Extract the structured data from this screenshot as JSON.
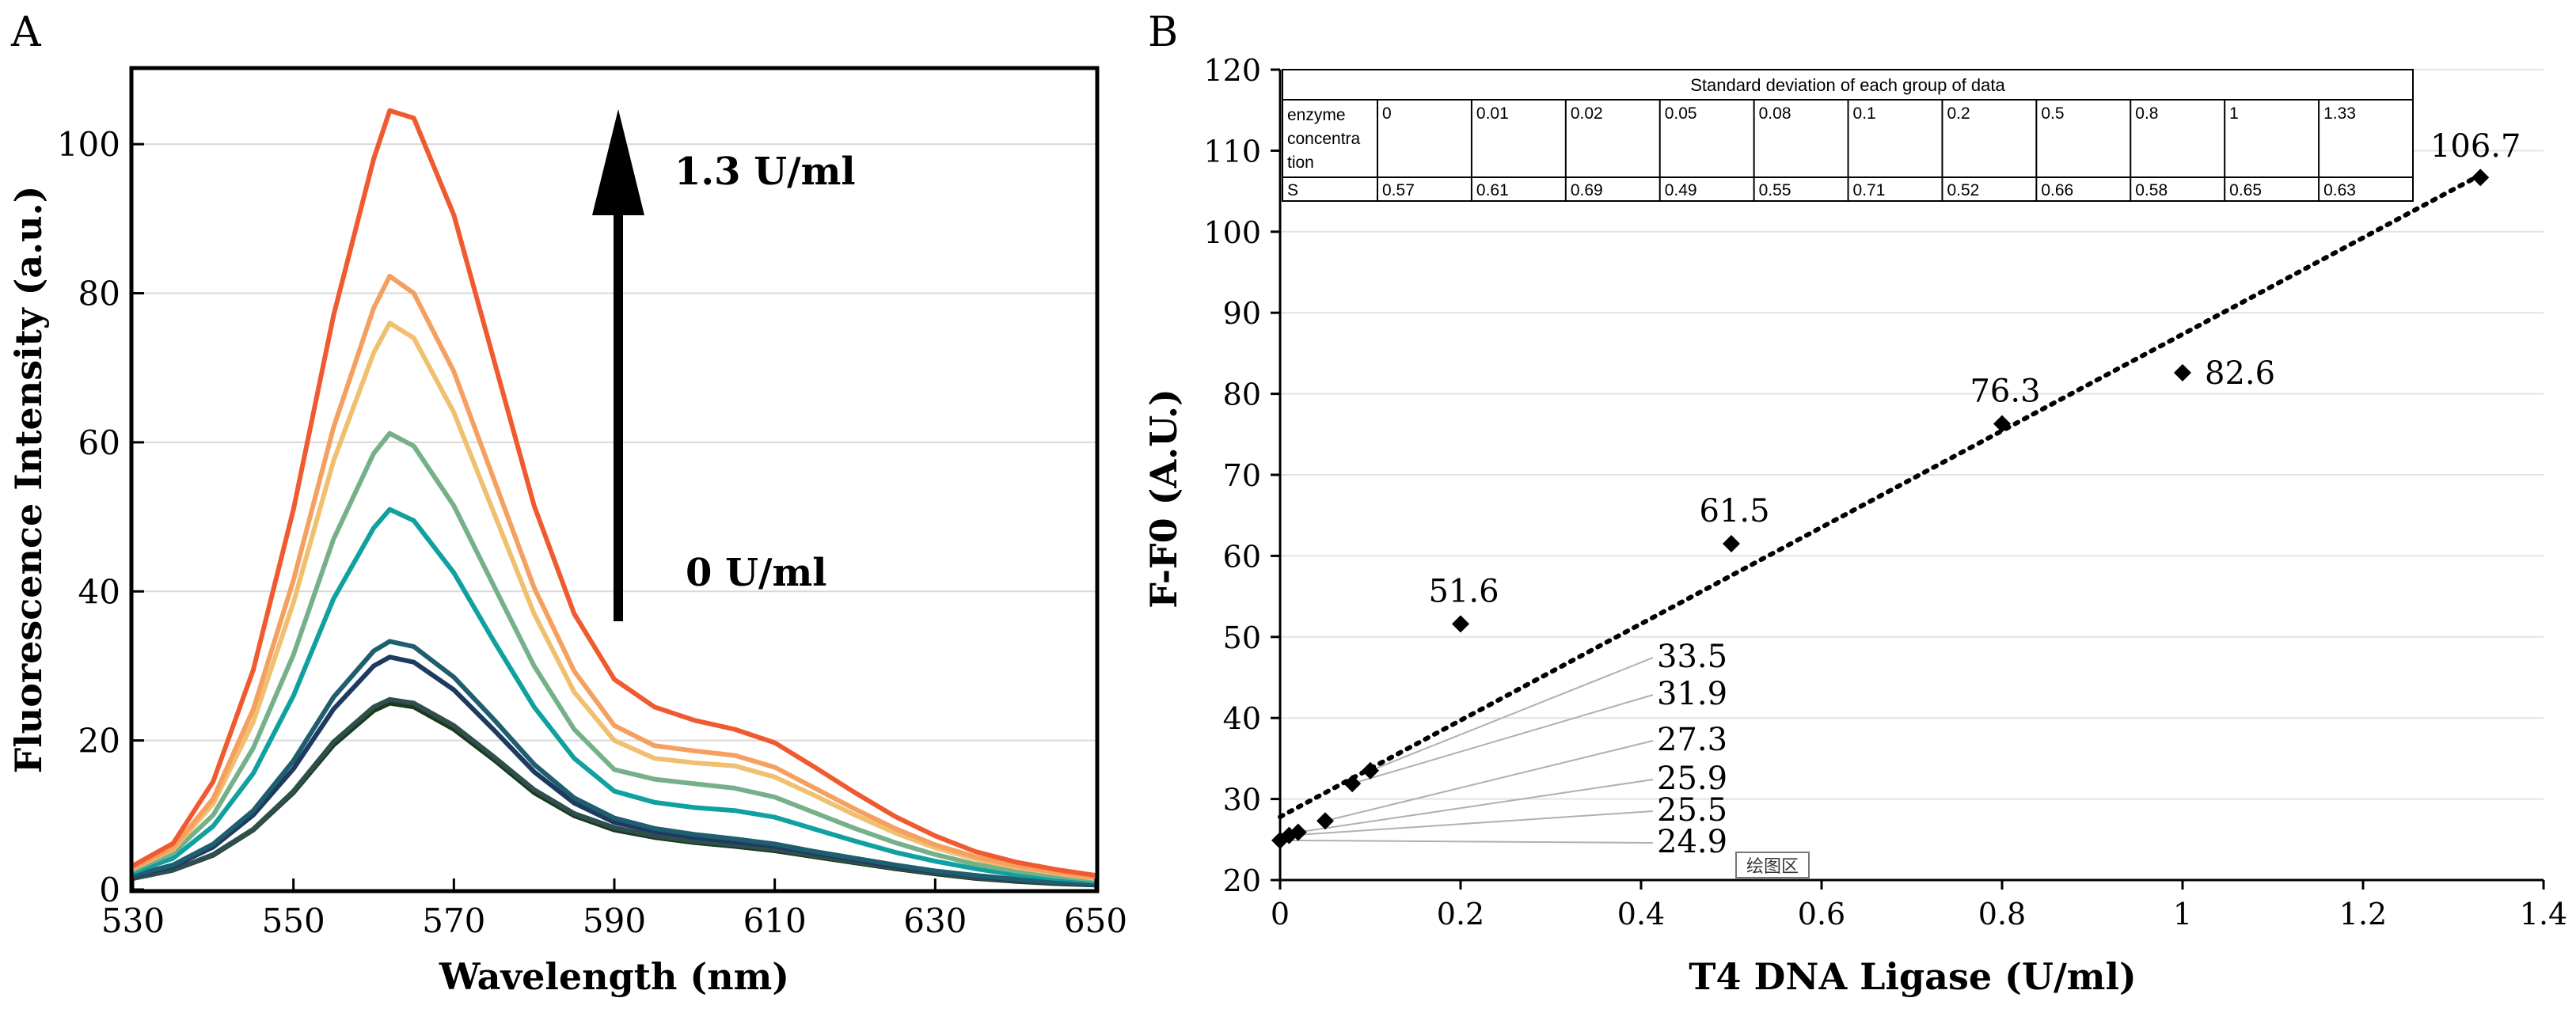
{
  "panel_a_label": "A",
  "panel_b_label": "B",
  "chart_data": [
    {
      "type": "line",
      "panel": "A",
      "xlabel": "Wavelength (nm)",
      "ylabel": "Fluorescence Intensity (a.u.)",
      "xlim": [
        530,
        650
      ],
      "ylim": [
        0,
        110
      ],
      "x_ticks": [
        530,
        550,
        570,
        590,
        610,
        630,
        650
      ],
      "y_ticks": [
        0,
        20,
        40,
        60,
        80,
        100
      ],
      "grid": "horizontal",
      "annotations": {
        "high": "1.3 U/ml",
        "low": "0 U/ml"
      },
      "x": [
        530,
        535,
        540,
        545,
        550,
        555,
        560,
        562,
        565,
        570,
        575,
        580,
        585,
        590,
        595,
        600,
        605,
        610,
        615,
        620,
        625,
        630,
        635,
        640,
        645,
        650
      ],
      "series": [
        {
          "color": "#1a3a1a",
          "values": [
            1.5,
            2.6,
            4.6,
            8.0,
            13.0,
            19.4,
            24.0,
            25.0,
            24.5,
            21.5,
            17.4,
            13.0,
            9.9,
            8.0,
            7.0,
            6.3,
            5.8,
            5.2,
            4.4,
            3.6,
            2.8,
            2.1,
            1.5,
            1.1,
            0.8,
            0.6
          ]
        },
        {
          "color": "#2f4f4f",
          "values": [
            1.5,
            2.6,
            4.7,
            8.1,
            13.2,
            19.8,
            24.5,
            25.5,
            25.0,
            22.0,
            17.8,
            13.4,
            10.2,
            8.3,
            7.2,
            6.5,
            6.0,
            5.4,
            4.5,
            3.7,
            2.9,
            2.2,
            1.6,
            1.2,
            0.9,
            0.6
          ]
        },
        {
          "color": "#1f3a60",
          "values": [
            1.8,
            3.1,
            5.7,
            10.0,
            16.2,
            24.2,
            30.0,
            31.2,
            30.5,
            26.8,
            21.4,
            15.8,
            11.6,
            9.0,
            7.8,
            7.0,
            6.4,
            5.8,
            4.9,
            4.0,
            3.1,
            2.4,
            1.8,
            1.3,
            1.0,
            0.7
          ]
        },
        {
          "color": "#1e5e6e",
          "values": [
            1.9,
            3.3,
            6.1,
            10.6,
            17.3,
            25.8,
            32.0,
            33.3,
            32.6,
            28.5,
            22.8,
            16.8,
            12.3,
            9.6,
            8.2,
            7.4,
            6.8,
            6.1,
            5.1,
            4.2,
            3.3,
            2.5,
            1.9,
            1.4,
            1.0,
            0.8
          ]
        },
        {
          "color": "#10a0a0",
          "values": [
            2.3,
            4.2,
            8.5,
            15.6,
            26.0,
            39.0,
            48.5,
            51.0,
            49.5,
            42.5,
            33.3,
            24.5,
            17.6,
            13.2,
            11.7,
            11.0,
            10.6,
            9.7,
            8.1,
            6.5,
            5.0,
            3.8,
            2.8,
            2.0,
            1.5,
            1.1
          ]
        },
        {
          "color": "#76b08a",
          "values": [
            2.6,
            4.9,
            10.0,
            19.0,
            31.5,
            47.0,
            58.5,
            61.2,
            59.5,
            51.5,
            40.7,
            30.0,
            21.5,
            16.1,
            14.8,
            14.2,
            13.6,
            12.4,
            10.3,
            8.2,
            6.3,
            4.7,
            3.4,
            2.5,
            1.8,
            1.3
          ]
        },
        {
          "color": "#f0c070",
          "values": [
            2.8,
            5.4,
            11.5,
            22.5,
            38.5,
            57.5,
            72.0,
            76.0,
            74.0,
            64.0,
            50.5,
            37.0,
            26.5,
            20.0,
            17.6,
            17.0,
            16.6,
            15.1,
            12.6,
            10.0,
            7.6,
            5.6,
            4.1,
            3.0,
            2.2,
            1.5
          ]
        },
        {
          "color": "#f5a060",
          "values": [
            2.9,
            5.6,
            12.2,
            24.2,
            41.5,
            62.0,
            78.0,
            82.3,
            80.0,
            69.5,
            55.0,
            40.5,
            29.3,
            22.0,
            19.3,
            18.6,
            18.0,
            16.4,
            13.6,
            10.8,
            8.2,
            6.0,
            4.4,
            3.2,
            2.3,
            1.6
          ]
        },
        {
          "color": "#f05a30",
          "values": [
            3.2,
            6.2,
            14.5,
            29.5,
            51.0,
            77.0,
            98.0,
            104.5,
            103.5,
            90.5,
            71.0,
            51.5,
            37.0,
            28.2,
            24.5,
            22.7,
            21.5,
            19.7,
            16.4,
            13.0,
            9.8,
            7.2,
            5.1,
            3.7,
            2.7,
            1.9
          ]
        }
      ]
    },
    {
      "type": "scatter",
      "panel": "B",
      "xlabel": "T4 DNA Ligase (U/ml)",
      "ylabel": "F-F0 (A.U.)",
      "xlim": [
        0,
        1.4
      ],
      "ylim": [
        20,
        120
      ],
      "x_ticks": [
        "0",
        "0.2",
        "0.4",
        "0.6",
        "0.8",
        "1",
        "1.2",
        "1.4"
      ],
      "y_ticks": [
        "20",
        "30",
        "40",
        "50",
        "60",
        "70",
        "80",
        "90",
        "100",
        "110",
        "120"
      ],
      "grid": "horizontal",
      "trendline": {
        "style": "dotted",
        "from": [
          0,
          27.8
        ],
        "to": [
          1.33,
          107.0
        ]
      },
      "points": [
        {
          "x": 0,
          "y": 24.9,
          "label": "24.9"
        },
        {
          "x": 0.01,
          "y": 25.5,
          "label": "25.5"
        },
        {
          "x": 0.02,
          "y": 25.9,
          "label": "25.9"
        },
        {
          "x": 0.05,
          "y": 27.3,
          "label": "27.3"
        },
        {
          "x": 0.08,
          "y": 31.9,
          "label": "31.9"
        },
        {
          "x": 0.1,
          "y": 33.5,
          "label": "33.5"
        },
        {
          "x": 0.2,
          "y": 51.6,
          "label": "51.6"
        },
        {
          "x": 0.5,
          "y": 61.5,
          "label": "61.5"
        },
        {
          "x": 0.8,
          "y": 76.3,
          "label": "76.3"
        },
        {
          "x": 1,
          "y": 82.6,
          "label": "82.6"
        },
        {
          "x": 1.33,
          "y": 106.7,
          "label": "106.7"
        }
      ],
      "plot_area_tag": "绘图区",
      "table": {
        "title": "Standard deviation of each group of data",
        "header_label": [
          "enzyme",
          "concentra",
          "tion"
        ],
        "concentrations": [
          "0",
          "0.01",
          "0.02",
          "0.05",
          "0.08",
          "0.1",
          "0.2",
          "0.5",
          "0.8",
          "1",
          "1.33"
        ],
        "s_label": "S",
        "s_values": [
          "0.57",
          "0.61",
          "0.69",
          "0.49",
          "0.55",
          "0.71",
          "0.52",
          "0.66",
          "0.58",
          "0.65",
          "0.63"
        ]
      }
    }
  ]
}
